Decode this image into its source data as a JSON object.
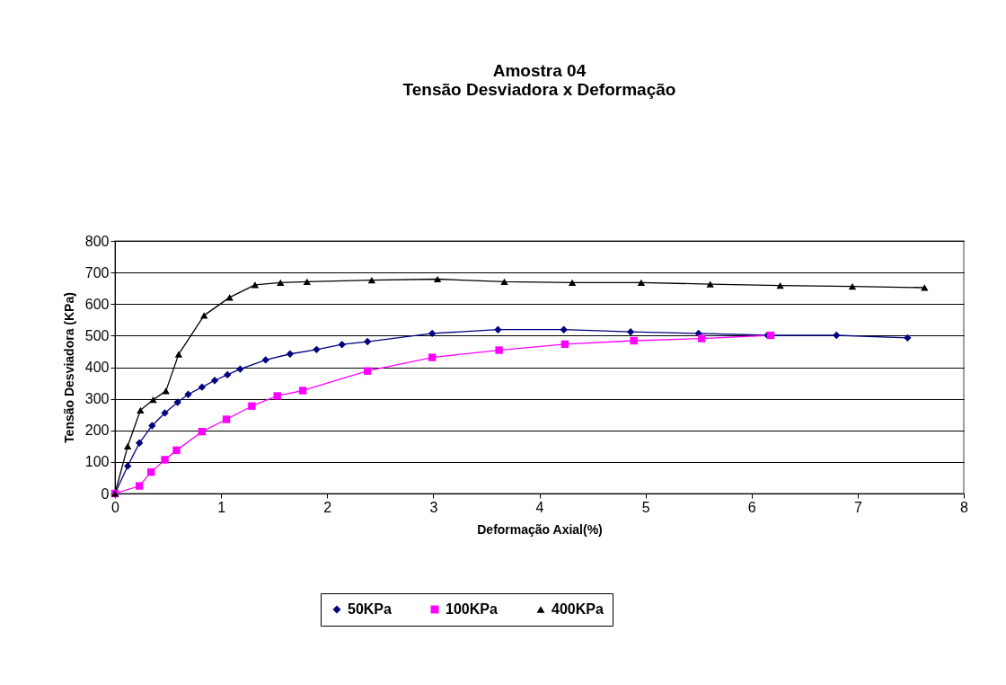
{
  "chart_data": {
    "type": "line",
    "title": [
      "Amostra 04",
      "Tensão Desviadora x Deformação"
    ],
    "xlabel": "Deformação Axial(%)",
    "ylabel": "Tensão Desviadora (KPa)",
    "xlim": [
      0,
      8
    ],
    "xticks": [
      0,
      1,
      2,
      3,
      4,
      5,
      6,
      7,
      8
    ],
    "ylim": [
      0,
      800
    ],
    "yticks": [
      0,
      100,
      200,
      300,
      400,
      500,
      600,
      700,
      800
    ],
    "grid": "y",
    "legend": "bottom",
    "line_style": "solid",
    "series": [
      {
        "name": "50KPa",
        "color": "#000080",
        "marker": "diamond",
        "x": [
          0,
          0.12,
          0.23,
          0.35,
          0.47,
          0.59,
          0.69,
          0.82,
          0.94,
          1.06,
          1.18,
          1.42,
          1.65,
          1.9,
          2.14,
          2.38,
          2.99,
          3.61,
          4.23,
          4.86,
          5.5,
          6.15,
          6.8,
          7.47
        ],
        "values": [
          0,
          87,
          160,
          215,
          255,
          289,
          314,
          337,
          358,
          376,
          394,
          423,
          442,
          456,
          472,
          481,
          507,
          519,
          519,
          512,
          507,
          501,
          501,
          493
        ]
      },
      {
        "name": "100KPa",
        "color": "#ff00ff",
        "marker": "square",
        "x": [
          0,
          0.23,
          0.34,
          0.47,
          0.58,
          0.82,
          1.05,
          1.29,
          1.53,
          1.77,
          2.38,
          2.99,
          3.62,
          4.24,
          4.89,
          5.53,
          6.18
        ],
        "values": [
          0,
          24,
          68,
          107,
          137,
          196,
          235,
          277,
          309,
          326,
          388,
          431,
          454,
          473,
          484,
          491,
          501
        ]
      },
      {
        "name": "400KPa",
        "color": "#000000",
        "marker": "triangle",
        "x": [
          0,
          0.12,
          0.24,
          0.36,
          0.48,
          0.6,
          0.84,
          1.08,
          1.32,
          1.56,
          1.81,
          2.42,
          3.04,
          3.67,
          4.31,
          4.96,
          5.61,
          6.27,
          6.95,
          7.63
        ],
        "values": [
          0,
          150,
          264,
          297,
          325,
          441,
          564,
          621,
          661,
          668,
          671,
          676,
          679,
          671,
          668,
          668,
          663,
          659,
          656,
          652
        ]
      }
    ]
  }
}
